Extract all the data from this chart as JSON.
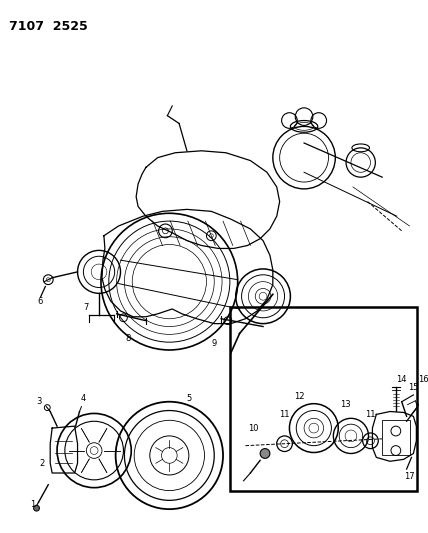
{
  "title": "7107  2525",
  "bg_color": "#ffffff",
  "line_color": "#000000",
  "fig_width": 4.28,
  "fig_height": 5.33,
  "dpi": 100
}
